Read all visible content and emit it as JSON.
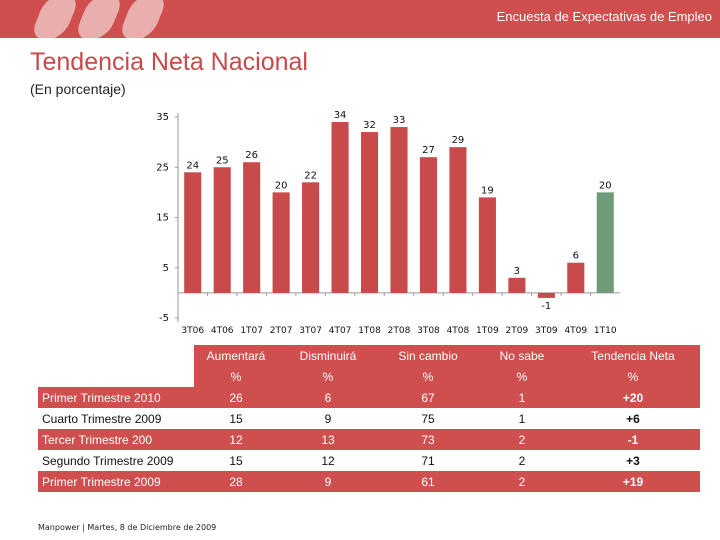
{
  "header": {
    "title": "Encuesta de Expectativas de Empleo"
  },
  "main_title": "Tendencia Neta Nacional",
  "subtitle": "(En porcentaje)",
  "chart_data": {
    "type": "bar",
    "categories": [
      "3T06",
      "4T06",
      "1T07",
      "2T07",
      "3T07",
      "4T07",
      "1T08",
      "2T08",
      "3T08",
      "4T08",
      "1T09",
      "2T09",
      "3T09",
      "4T09",
      "1T10"
    ],
    "values": [
      24,
      25,
      26,
      20,
      22,
      34,
      32,
      33,
      27,
      29,
      19,
      3,
      -1,
      6,
      20
    ],
    "data_labels": [
      "24",
      "25",
      "26",
      "20",
      "22",
      "34",
      "32",
      "33",
      "27",
      "29",
      "19",
      "3",
      "-1",
      "6",
      "20"
    ],
    "yticks": [
      "35",
      "25",
      "15",
      "5",
      "-5"
    ],
    "ylim": [
      -5,
      35
    ],
    "colors": {
      "default": "#c84a4a",
      "highlight": "#6f9b78"
    },
    "highlight_index": 14,
    "grid": false
  },
  "table": {
    "headers": [
      "Aumentará",
      "Disminuirá",
      "Sin cambio",
      "No sabe",
      "Tendencia Neta"
    ],
    "units": [
      "%",
      "%",
      "%",
      "%",
      "%"
    ],
    "rows": [
      {
        "label": "Primer Trimestre 2010",
        "values": [
          "26",
          "6",
          "67",
          "1",
          "+20"
        ]
      },
      {
        "label": "Cuarto Trimestre 2009",
        "values": [
          "15",
          "9",
          "75",
          "1",
          "+6"
        ]
      },
      {
        "label": "Tercer Trimestre 200",
        "values": [
          "12",
          "13",
          "73",
          "2",
          "-1"
        ]
      },
      {
        "label": "Segundo Trimestre 2009",
        "values": [
          "15",
          "12",
          "71",
          "2",
          "+3"
        ]
      },
      {
        "label": "Primer Trimestre 2009",
        "values": [
          "28",
          "9",
          "61",
          "2",
          "+19"
        ]
      }
    ]
  },
  "footer": {
    "text": "Manpower  |  Martes, 8 de Diciembre de 2009"
  }
}
